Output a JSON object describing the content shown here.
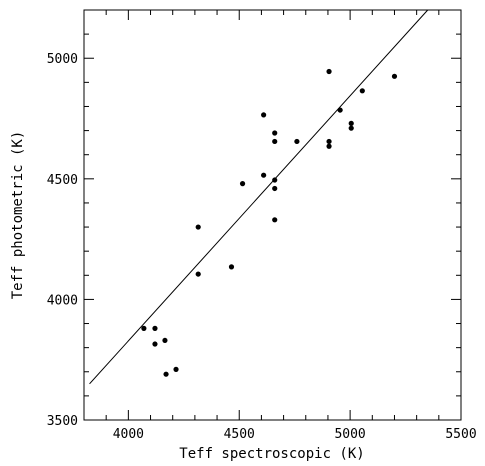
{
  "chart_data": {
    "type": "scatter",
    "title": "",
    "xlabel": "Teff spectroscopic (K)",
    "ylabel": "Teff photometric (K)",
    "xlim": [
      3800,
      5500
    ],
    "ylim": [
      3500,
      5200
    ],
    "x_ticks": [
      4000,
      4500,
      5000,
      5500
    ],
    "y_ticks": [
      3500,
      4000,
      4500,
      5000
    ],
    "x_tick_labels": [
      "4000",
      "4500",
      "5000",
      "5500"
    ],
    "y_tick_labels": [
      "3500",
      "4000",
      "4500",
      "5000"
    ],
    "grid": false,
    "legend": "none",
    "point_color": "#000000",
    "points": [
      {
        "x": 4070,
        "y": 3880
      },
      {
        "x": 4120,
        "y": 3880
      },
      {
        "x": 4120,
        "y": 3815
      },
      {
        "x": 4165,
        "y": 3830
      },
      {
        "x": 4170,
        "y": 3690
      },
      {
        "x": 4215,
        "y": 3710
      },
      {
        "x": 4315,
        "y": 4300
      },
      {
        "x": 4315,
        "y": 4105
      },
      {
        "x": 4465,
        "y": 4135
      },
      {
        "x": 4515,
        "y": 4480
      },
      {
        "x": 4610,
        "y": 4765
      },
      {
        "x": 4610,
        "y": 4515
      },
      {
        "x": 4660,
        "y": 4690
      },
      {
        "x": 4660,
        "y": 4655
      },
      {
        "x": 4660,
        "y": 4495
      },
      {
        "x": 4660,
        "y": 4460
      },
      {
        "x": 4660,
        "y": 4330
      },
      {
        "x": 4760,
        "y": 4655
      },
      {
        "x": 4905,
        "y": 4945
      },
      {
        "x": 4905,
        "y": 4655
      },
      {
        "x": 4905,
        "y": 4635
      },
      {
        "x": 4955,
        "y": 4785
      },
      {
        "x": 5005,
        "y": 4730
      },
      {
        "x": 5005,
        "y": 4710
      },
      {
        "x": 5055,
        "y": 4865
      },
      {
        "x": 5200,
        "y": 4925
      }
    ],
    "fit_line": {
      "x": [
        3825,
        5350
      ],
      "y": [
        3650,
        5200
      ]
    }
  }
}
